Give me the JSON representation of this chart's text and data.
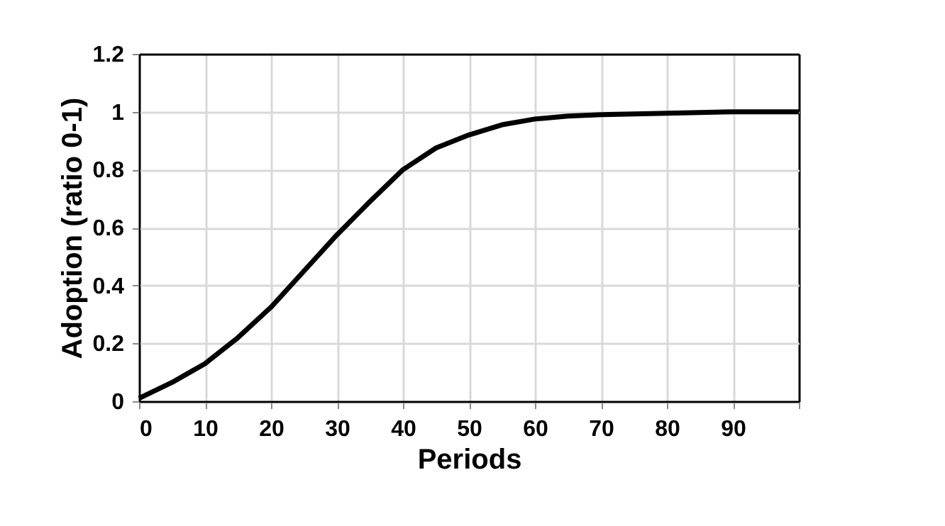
{
  "chart_data": {
    "type": "line",
    "xlabel": "Periods",
    "ylabel": "Adoption (ratio 0-1)",
    "x": [
      0,
      5,
      10,
      15,
      20,
      25,
      30,
      35,
      40,
      45,
      50,
      55,
      60,
      65,
      70,
      80,
      90,
      100
    ],
    "series": [
      {
        "color": "#000000",
        "values": [
          0.01,
          0.065,
          0.13,
          0.22,
          0.325,
          0.45,
          0.575,
          0.69,
          0.8,
          0.875,
          0.92,
          0.955,
          0.975,
          0.985,
          0.99,
          0.995,
          1.0,
          1.0
        ]
      }
    ],
    "xlim": [
      0,
      100
    ],
    "xticks": [
      0,
      10,
      20,
      30,
      40,
      50,
      60,
      70,
      80,
      90,
      {
        "value": 100,
        "label": null
      }
    ],
    "ylim": [
      0,
      1.2
    ],
    "yticks": [
      0,
      0.2,
      0.4,
      0.6,
      0.8,
      1,
      1.2
    ],
    "grid": true,
    "marker": "none",
    "line_style": "solid"
  }
}
